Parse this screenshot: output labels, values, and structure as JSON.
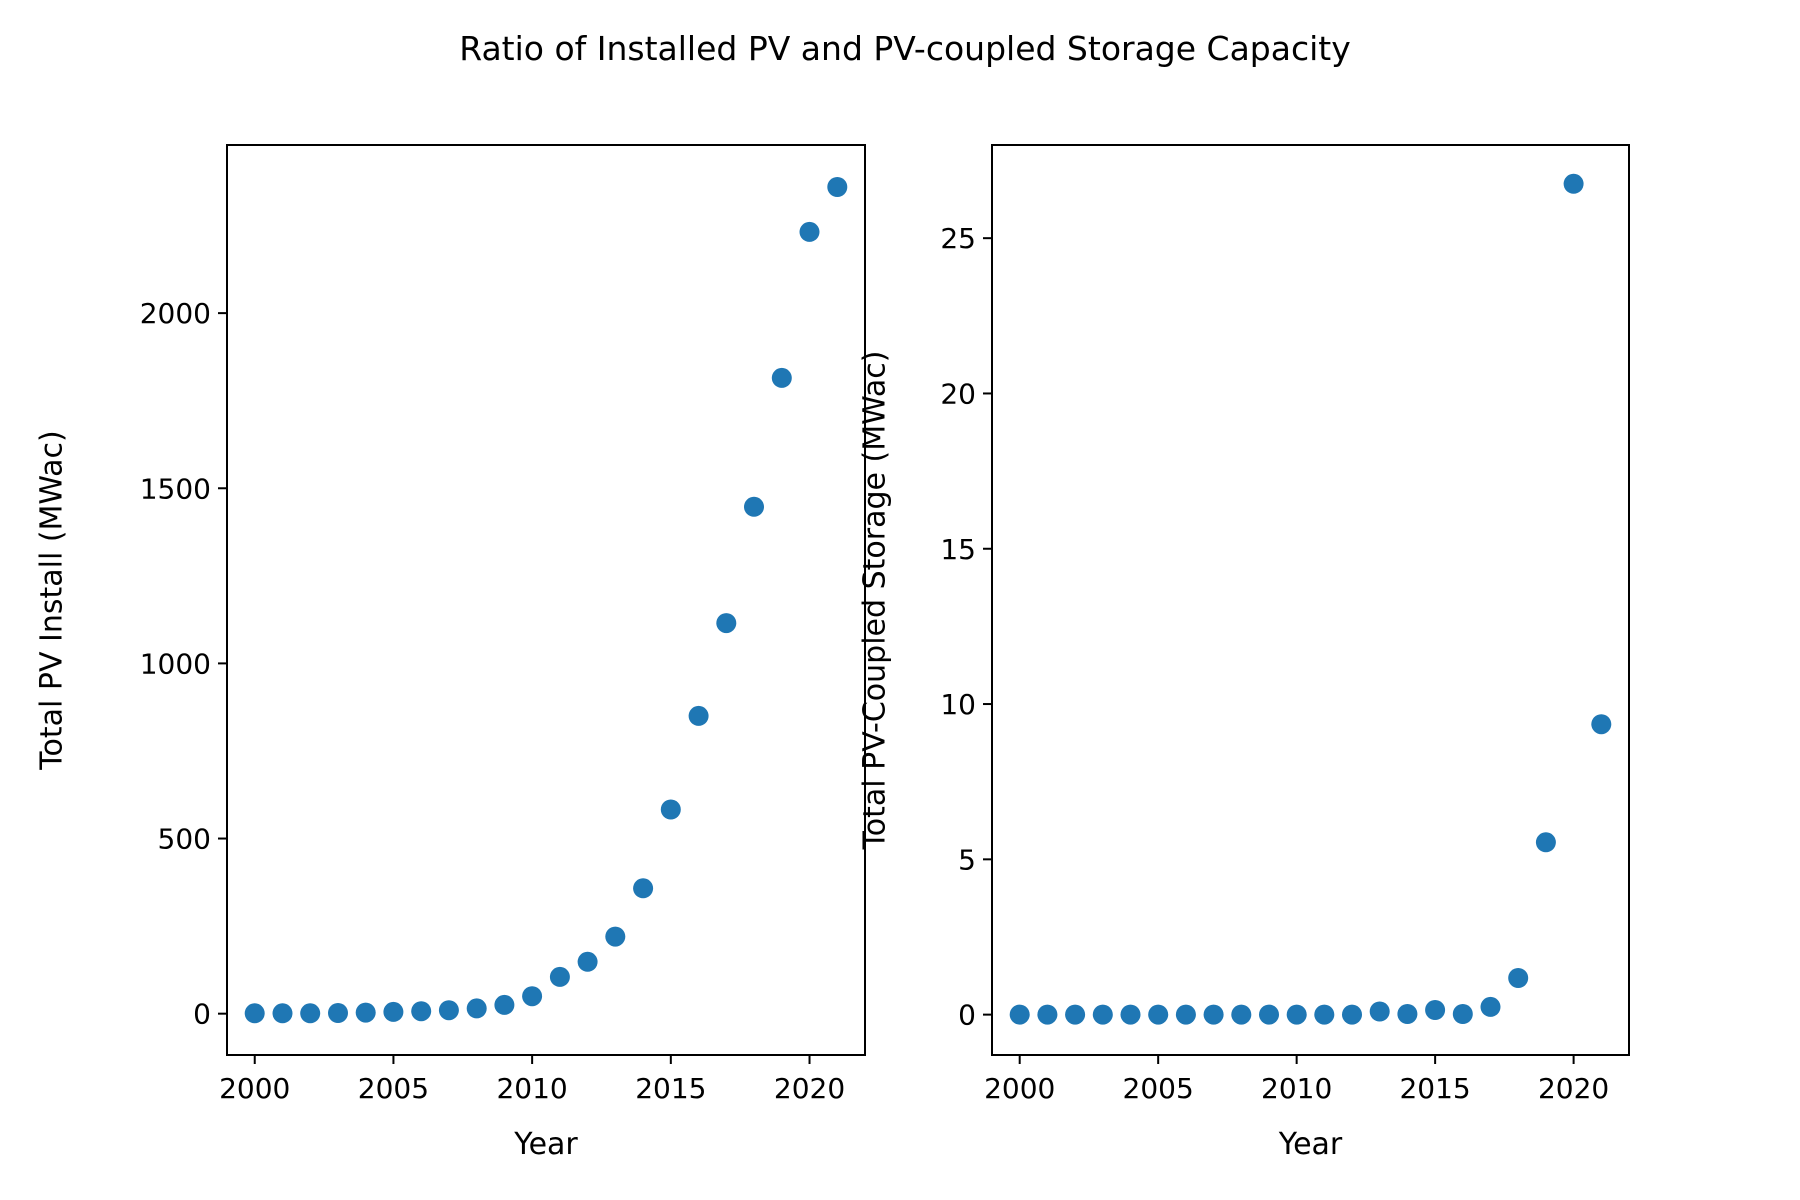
{
  "figure": {
    "title": "Ratio of Installed PV and PV-coupled Storage Capacity"
  },
  "colors": {
    "marker": "#1f77b4",
    "axis": "#000000",
    "background": "#ffffff"
  },
  "chart_data": [
    {
      "type": "scatter",
      "xlabel": "Year",
      "ylabel": "Total PV Install (MWac)",
      "xlim": [
        1999,
        2022
      ],
      "ylim": [
        -118,
        2480
      ],
      "xticks": [
        2000,
        2005,
        2010,
        2015,
        2020
      ],
      "yticks": [
        0,
        500,
        1000,
        1500,
        2000
      ],
      "grid": false,
      "series": [
        {
          "x": [
            2000,
            2001,
            2002,
            2003,
            2004,
            2005,
            2006,
            2007,
            2008,
            2009,
            2010,
            2011,
            2012,
            2013,
            2014,
            2015,
            2016,
            2017,
            2018,
            2019,
            2020,
            2021
          ],
          "y": [
            1,
            1,
            1,
            2,
            3,
            5,
            7,
            10,
            15,
            25,
            50,
            105,
            148,
            220,
            358,
            583,
            850,
            1115,
            1447,
            1815,
            2232,
            2360
          ]
        }
      ]
    },
    {
      "type": "scatter",
      "xlabel": "Year",
      "ylabel": "Total PV-Coupled Storage (MWac)",
      "xlim": [
        1999,
        2022
      ],
      "ylim": [
        -1.3,
        28.0
      ],
      "xticks": [
        2000,
        2005,
        2010,
        2015,
        2020
      ],
      "yticks": [
        0,
        5,
        10,
        15,
        20,
        25
      ],
      "grid": false,
      "series": [
        {
          "x": [
            2000,
            2001,
            2002,
            2003,
            2004,
            2005,
            2006,
            2007,
            2008,
            2009,
            2010,
            2011,
            2012,
            2013,
            2014,
            2015,
            2016,
            2017,
            2018,
            2019,
            2020,
            2021
          ],
          "y": [
            0,
            0,
            0,
            0,
            0,
            0,
            0,
            0,
            0,
            0,
            0,
            0,
            0,
            0.1,
            0.02,
            0.15,
            0.02,
            0.25,
            1.18,
            5.55,
            26.75,
            9.35
          ]
        }
      ]
    }
  ]
}
